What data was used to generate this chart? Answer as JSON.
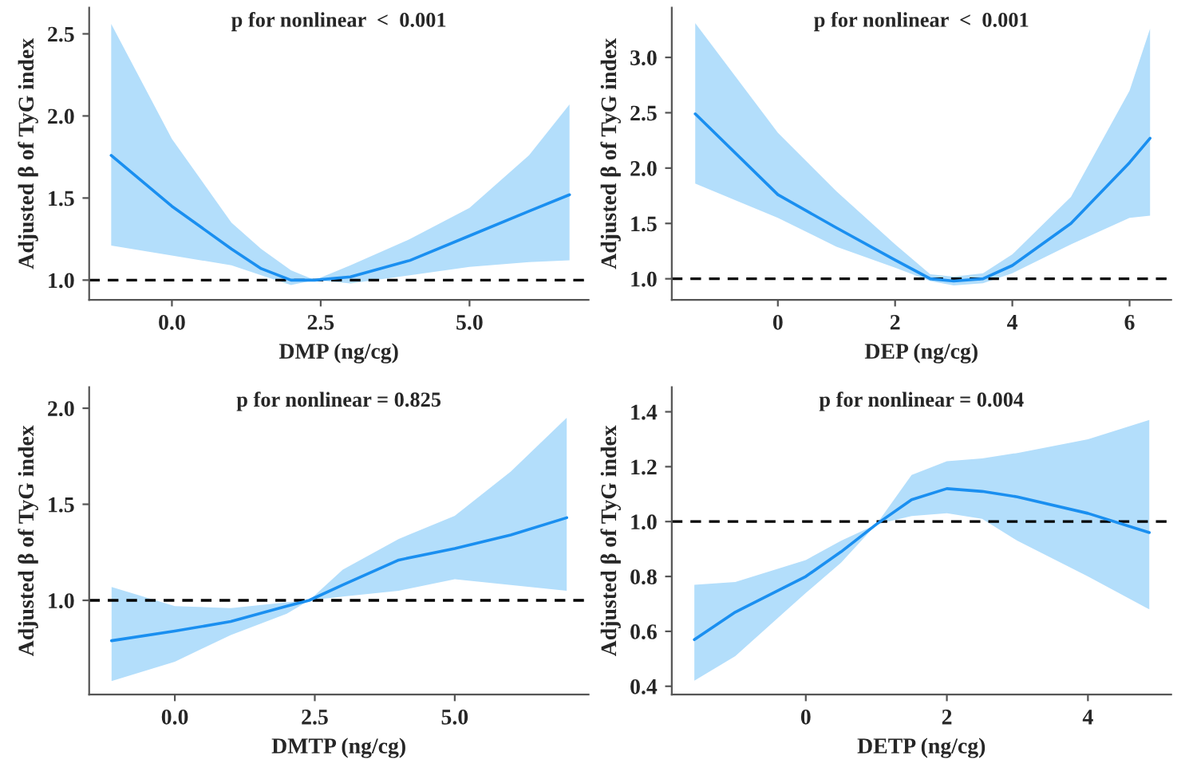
{
  "chart_data": [
    {
      "type": "line",
      "title": "p for nonlinear  <  0.001",
      "xlabel": "DMP (ng/cg)",
      "ylabel": "Adjusted β of TyG index",
      "xlim": [
        -1.39,
        7.0
      ],
      "ylim": [
        0.88,
        2.66
      ],
      "xticks": [
        {
          "value": 0,
          "label": "0.0"
        },
        {
          "value": 2.5,
          "label": "2.5"
        },
        {
          "value": 5,
          "label": "5.0"
        }
      ],
      "yticks": [
        {
          "value": 1,
          "label": "1.0"
        },
        {
          "value": 1.5,
          "label": "1.5"
        },
        {
          "value": 2,
          "label": "2.0"
        },
        {
          "value": 2.5,
          "label": "2.5"
        }
      ],
      "x": [
        -1.02,
        0,
        1,
        1.5,
        2,
        2.4,
        3,
        4,
        5,
        6,
        6.68
      ],
      "series": [
        {
          "color": "#1a8ff0",
          "values": [
            1.76,
            1.45,
            1.19,
            1.07,
            1.0,
            1.0,
            1.02,
            1.12,
            1.27,
            1.42,
            1.52
          ],
          "lower": [
            1.21,
            1.15,
            1.09,
            1.03,
            0.97,
            1.0,
            0.98,
            1.03,
            1.08,
            1.11,
            1.12
          ],
          "upper": [
            2.56,
            1.86,
            1.35,
            1.19,
            1.06,
            1.0,
            1.09,
            1.25,
            1.44,
            1.76,
            2.07
          ]
        }
      ],
      "ref_lines": [
        {
          "axis": "y",
          "value": 1,
          "color": "#000000",
          "line_style": "dashed"
        }
      ],
      "grid": false,
      "legend": false
    },
    {
      "type": "line",
      "title": "p for nonlinear  <  0.001",
      "xlabel": "DEP (ng/cg)",
      "ylabel": "Adjusted β of TyG index",
      "xlim": [
        -1.81,
        6.71
      ],
      "ylim": [
        0.81,
        3.45
      ],
      "xticks": [
        0,
        2,
        4,
        6
      ],
      "yticks": [
        {
          "value": 1,
          "label": "1.0"
        },
        {
          "value": 1.5,
          "label": "1.5"
        },
        {
          "value": 2,
          "label": "2.0"
        },
        {
          "value": 2.5,
          "label": "2.5"
        },
        {
          "value": 3,
          "label": "3.0"
        }
      ],
      "x": [
        -1.41,
        0,
        1,
        2,
        2.6,
        3,
        3.5,
        4,
        5,
        6,
        6.35
      ],
      "series": [
        {
          "color": "#1a8ff0",
          "values": [
            2.49,
            1.76,
            1.46,
            1.17,
            1.0,
            0.98,
            1.0,
            1.12,
            1.5,
            2.05,
            2.27
          ],
          "lower": [
            1.86,
            1.55,
            1.29,
            1.1,
            0.98,
            0.94,
            0.96,
            1.05,
            1.31,
            1.55,
            1.57
          ],
          "upper": [
            3.31,
            2.32,
            1.79,
            1.31,
            1.04,
            1.02,
            1.05,
            1.22,
            1.74,
            2.7,
            3.26
          ]
        }
      ],
      "ref_lines": [
        {
          "axis": "y",
          "value": 1,
          "color": "#000000",
          "line_style": "dashed"
        }
      ],
      "grid": false,
      "legend": false
    },
    {
      "type": "line",
      "title": "p for nonlinear = 0.825",
      "xlabel": "DMTP (ng/cg)",
      "ylabel": "Adjusted β of TyG index",
      "xlim": [
        -1.53,
        7.39
      ],
      "ylim": [
        0.51,
        2.11
      ],
      "xticks": [
        {
          "value": 0,
          "label": "0.0"
        },
        {
          "value": 2.5,
          "label": "2.5"
        },
        {
          "value": 5,
          "label": "5.0"
        }
      ],
      "yticks": [
        {
          "value": 1,
          "label": "1.0"
        },
        {
          "value": 1.5,
          "label": "1.5"
        },
        {
          "value": 2,
          "label": "2.0"
        }
      ],
      "x": [
        -1.13,
        0,
        1,
        2,
        2.4,
        3,
        4,
        5,
        6,
        7
      ],
      "series": [
        {
          "color": "#1a8ff0",
          "values": [
            0.79,
            0.84,
            0.89,
            0.97,
            1.0,
            1.08,
            1.21,
            1.27,
            1.34,
            1.43
          ],
          "lower": [
            0.58,
            0.68,
            0.82,
            0.93,
            1.0,
            1.02,
            1.05,
            1.11,
            1.08,
            1.05
          ],
          "upper": [
            1.07,
            0.97,
            0.96,
            0.99,
            1.0,
            1.16,
            1.32,
            1.44,
            1.67,
            1.95
          ]
        }
      ],
      "ref_lines": [
        {
          "axis": "y",
          "value": 1,
          "color": "#000000",
          "line_style": "dashed"
        }
      ],
      "grid": false,
      "legend": false
    },
    {
      "type": "line",
      "title": "p for nonlinear = 0.004",
      "xlabel": "DETP (ng/cg)",
      "ylabel": "Adjusted β of TyG index",
      "xlim": [
        -1.9,
        5.18
      ],
      "ylim": [
        0.37,
        1.49
      ],
      "xticks": [
        0,
        2,
        4
      ],
      "yticks": [
        {
          "value": 0.4,
          "label": "0.4"
        },
        {
          "value": 0.6,
          "label": "0.6"
        },
        {
          "value": 0.8,
          "label": "0.8"
        },
        {
          "value": 1.0,
          "label": "1.0"
        },
        {
          "value": 1.2,
          "label": "1.2"
        },
        {
          "value": 1.4,
          "label": "1.4"
        }
      ],
      "x": [
        -1.58,
        -1,
        0,
        0.5,
        1,
        1.5,
        2,
        2.5,
        3,
        4,
        4.87
      ],
      "series": [
        {
          "color": "#1a8ff0",
          "values": [
            0.57,
            0.67,
            0.8,
            0.89,
            0.99,
            1.08,
            1.12,
            1.11,
            1.09,
            1.03,
            0.96
          ],
          "lower": [
            0.42,
            0.51,
            0.74,
            0.85,
            0.99,
            1.02,
            1.03,
            1.01,
            0.93,
            0.8,
            0.68
          ],
          "upper": [
            0.77,
            0.78,
            0.86,
            0.93,
            0.99,
            1.17,
            1.22,
            1.23,
            1.25,
            1.3,
            1.37
          ]
        }
      ],
      "ref_lines": [
        {
          "axis": "y",
          "value": 1,
          "color": "#000000",
          "line_style": "dashed"
        }
      ],
      "grid": false,
      "legend": false
    }
  ]
}
